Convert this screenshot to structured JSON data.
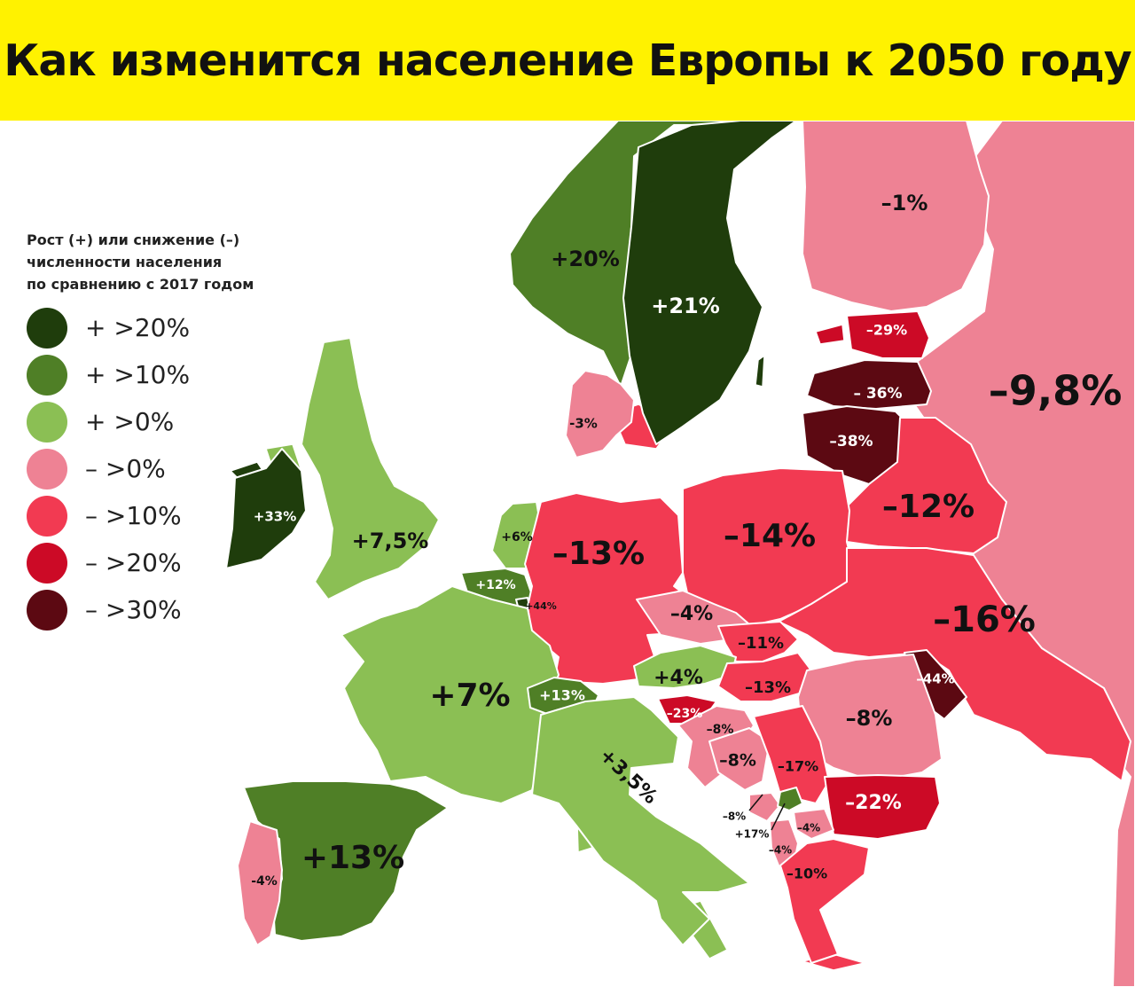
{
  "title": "Как изменится население Европы к 2050 году",
  "legend": {
    "title_lines": [
      "Рост (+) или снижение (–)",
      "численности населения",
      "по сравнению с 2017 годом"
    ],
    "items": [
      {
        "label": "+ >20%",
        "color": "#1f3d0c"
      },
      {
        "label": "+ >10%",
        "color": "#4f7f26"
      },
      {
        "label": "+ >0%",
        "color": "#8bbf54"
      },
      {
        "label": "– >0%",
        "color": "#ee8294"
      },
      {
        "label": "– >10%",
        "color": "#f23a52"
      },
      {
        "label": "– >20%",
        "color": "#cc0a26"
      },
      {
        "label": "– >30%",
        "color": "#5c0912"
      }
    ]
  },
  "countries": [
    {
      "name": "Russia",
      "label": "–9,8%",
      "value": -9.8
    },
    {
      "name": "Finland",
      "label": "–1%",
      "value": -1
    },
    {
      "name": "Norway",
      "label": "+20%",
      "value": 20
    },
    {
      "name": "Sweden",
      "label": "+21%",
      "value": 21
    },
    {
      "name": "Estonia",
      "label": "–29%",
      "value": -29
    },
    {
      "name": "Latvia",
      "label": "– 36%",
      "value": -36
    },
    {
      "name": "Lithuania",
      "label": "–38%",
      "value": -38
    },
    {
      "name": "Denmark",
      "label": "-3%",
      "value": -3
    },
    {
      "name": "Belarus",
      "label": "–12%",
      "value": -12
    },
    {
      "name": "Ireland",
      "label": "+33%",
      "value": 33
    },
    {
      "name": "United Kingdom",
      "label": "+7,5%",
      "value": 7.5
    },
    {
      "name": "Netherlands",
      "label": "+6%",
      "value": 6
    },
    {
      "name": "Belgium",
      "label": "+12%",
      "value": 12
    },
    {
      "name": "Luxembourg",
      "label": "+44%",
      "value": 44
    },
    {
      "name": "Germany",
      "label": "–13%",
      "value": -13
    },
    {
      "name": "Poland",
      "label": "–14%",
      "value": -14
    },
    {
      "name": "Ukraine",
      "label": "–16%",
      "value": -16
    },
    {
      "name": "Czech Republic",
      "label": "–4%",
      "value": -4
    },
    {
      "name": "Slovakia",
      "label": "–11%",
      "value": -11
    },
    {
      "name": "Austria",
      "label": "+4%",
      "value": 4
    },
    {
      "name": "Hungary",
      "label": "–13%",
      "value": -13
    },
    {
      "name": "Moldova",
      "label": "–44%",
      "value": -44
    },
    {
      "name": "Romania",
      "label": "–8%",
      "value": -8
    },
    {
      "name": "France",
      "label": "+7%",
      "value": 7
    },
    {
      "name": "Switzerland",
      "label": "+13%",
      "value": 13
    },
    {
      "name": "Slovenia",
      "label": "–23%",
      "value": -23
    },
    {
      "name": "Croatia",
      "label": "–8%",
      "value": -8
    },
    {
      "name": "Bosnia and Herzegovina",
      "label": "–8%",
      "value": -8
    },
    {
      "name": "Serbia",
      "label": "–17%",
      "value": -17
    },
    {
      "name": "Italy",
      "label": "+3,5%",
      "value": 3.5
    },
    {
      "name": "Bulgaria",
      "label": "–22%",
      "value": -22
    },
    {
      "name": "Montenegro",
      "label": "–8%",
      "value": -8
    },
    {
      "name": "Kosovo",
      "label": "+17%",
      "value": 17
    },
    {
      "name": "North Macedonia",
      "label": "–4%",
      "value": -4
    },
    {
      "name": "Albania",
      "label": "–4%",
      "value": -4
    },
    {
      "name": "Greece",
      "label": "–10%",
      "value": -10
    },
    {
      "name": "Spain",
      "label": "+13%",
      "value": 13
    },
    {
      "name": "Portugal",
      "label": "-4%",
      "value": -4
    }
  ]
}
